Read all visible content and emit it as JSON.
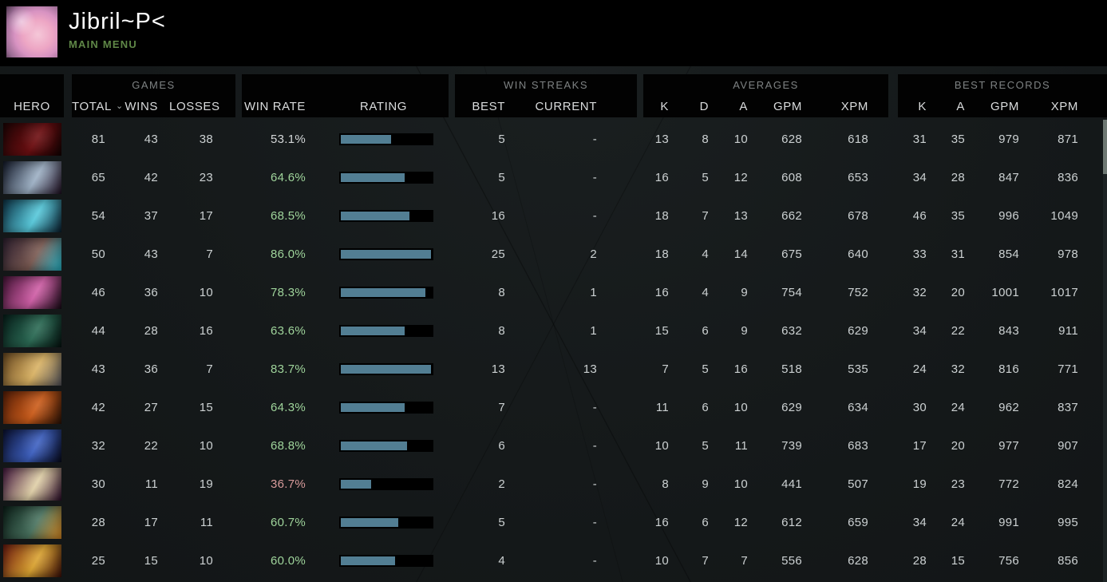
{
  "profile": {
    "name": "Jibril~P<",
    "subtitle": "MAIN MENU"
  },
  "colors": {
    "accent_green": "#9fd49b",
    "accent_red": "#d89b9b",
    "bar_fill": "#527e93",
    "menu_green": "#5f8747"
  },
  "table": {
    "groups": {
      "games": "GAMES",
      "win_streaks": "WIN STREAKS",
      "averages": "AVERAGES",
      "best_records": "BEST RECORDS"
    },
    "columns": {
      "hero": "HERO",
      "total": "TOTAL",
      "wins": "WINS",
      "losses": "LOSSES",
      "win_rate": "WIN RATE",
      "rating": "RATING",
      "best": "BEST",
      "current": "CURRENT",
      "k": "K",
      "d": "D",
      "a": "A",
      "gpm": "GPM",
      "xpm": "XPM",
      "rec_k": "K",
      "rec_a": "A",
      "rec_gpm": "GPM",
      "rec_xpm": "XPM"
    },
    "sort_icon": "⌄",
    "rows": [
      {
        "hero": "shadow-fiend",
        "portrait": [
          "#1c0404",
          "#6e0f12",
          "#120202"
        ],
        "total": "81",
        "wins": "43",
        "losses": "38",
        "win_rate": "53.1%",
        "rating_pct": 55,
        "best_streak": "5",
        "current_streak": "-",
        "avg": {
          "k": "13",
          "d": "8",
          "a": "10",
          "gpm": "628",
          "xpm": "618"
        },
        "best": {
          "k": "31",
          "a": "35",
          "gpm": "979",
          "xpm": "871"
        }
      },
      {
        "hero": "queen-of-pain",
        "portrait": [
          "#151b2b",
          "#9db0c4",
          "#201022"
        ],
        "total": "65",
        "wins": "42",
        "losses": "23",
        "win_rate": "64.6%",
        "rating_pct": 70,
        "best_streak": "5",
        "current_streak": "-",
        "avg": {
          "k": "16",
          "d": "5",
          "a": "12",
          "gpm": "608",
          "xpm": "653"
        },
        "best": {
          "k": "34",
          "a": "28",
          "gpm": "847",
          "xpm": "836"
        }
      },
      {
        "hero": "storm-spirit",
        "portrait": [
          "#0d3346",
          "#57c8da",
          "#0a1e2e"
        ],
        "total": "54",
        "wins": "37",
        "losses": "17",
        "win_rate": "68.5%",
        "rating_pct": 75,
        "best_streak": "16",
        "current_streak": "-",
        "avg": {
          "k": "18",
          "d": "7",
          "a": "13",
          "gpm": "662",
          "xpm": "678"
        },
        "best": {
          "k": "46",
          "a": "35",
          "gpm": "996",
          "xpm": "1049"
        }
      },
      {
        "hero": "tinker",
        "portrait": [
          "#2e2030",
          "#7a5a52",
          "#27b6c9"
        ],
        "total": "50",
        "wins": "43",
        "losses": "7",
        "win_rate": "86.0%",
        "rating_pct": 99,
        "best_streak": "25",
        "current_streak": "2",
        "avg": {
          "k": "18",
          "d": "4",
          "a": "14",
          "gpm": "675",
          "xpm": "640"
        },
        "best": {
          "k": "33",
          "a": "31",
          "gpm": "854",
          "xpm": "978"
        }
      },
      {
        "hero": "templar-assassin",
        "portrait": [
          "#471538",
          "#cf5fa6",
          "#180a16"
        ],
        "total": "46",
        "wins": "36",
        "losses": "10",
        "win_rate": "78.3%",
        "rating_pct": 93,
        "best_streak": "8",
        "current_streak": "1",
        "avg": {
          "k": "16",
          "d": "4",
          "a": "9",
          "gpm": "754",
          "xpm": "752"
        },
        "best": {
          "k": "32",
          "a": "20",
          "gpm": "1001",
          "xpm": "1017"
        }
      },
      {
        "hero": "outworld-destroyer",
        "portrait": [
          "#07201b",
          "#2c6b55",
          "#051310"
        ],
        "total": "44",
        "wins": "28",
        "losses": "16",
        "win_rate": "63.6%",
        "rating_pct": 70,
        "best_streak": "8",
        "current_streak": "1",
        "avg": {
          "k": "15",
          "d": "6",
          "a": "9",
          "gpm": "632",
          "xpm": "629"
        },
        "best": {
          "k": "34",
          "a": "22",
          "gpm": "843",
          "xpm": "911"
        }
      },
      {
        "hero": "omniknight",
        "portrait": [
          "#6b4a22",
          "#d9b264",
          "#57575e"
        ],
        "total": "43",
        "wins": "36",
        "losses": "7",
        "win_rate": "83.7%",
        "rating_pct": 99,
        "best_streak": "13",
        "current_streak": "13",
        "avg": {
          "k": "7",
          "d": "5",
          "a": "16",
          "gpm": "518",
          "xpm": "535"
        },
        "best": {
          "k": "24",
          "a": "32",
          "gpm": "816",
          "xpm": "771"
        }
      },
      {
        "hero": "legion-commander",
        "portrait": [
          "#591f07",
          "#cc5d1b",
          "#2a1206"
        ],
        "total": "42",
        "wins": "27",
        "losses": "15",
        "win_rate": "64.3%",
        "rating_pct": 70,
        "best_streak": "7",
        "current_streak": "-",
        "avg": {
          "k": "11",
          "d": "6",
          "a": "10",
          "gpm": "629",
          "xpm": "634"
        },
        "best": {
          "k": "30",
          "a": "24",
          "gpm": "962",
          "xpm": "837"
        }
      },
      {
        "hero": "luna",
        "portrait": [
          "#0b1233",
          "#3f62c2",
          "#070a1c"
        ],
        "total": "32",
        "wins": "22",
        "losses": "10",
        "win_rate": "68.8%",
        "rating_pct": 73,
        "best_streak": "6",
        "current_streak": "-",
        "avg": {
          "k": "10",
          "d": "5",
          "a": "11",
          "gpm": "739",
          "xpm": "683"
        },
        "best": {
          "k": "17",
          "a": "20",
          "gpm": "977",
          "xpm": "907"
        }
      },
      {
        "hero": "invoker",
        "portrait": [
          "#451840",
          "#e0d0a8",
          "#2c0c2a"
        ],
        "total": "30",
        "wins": "11",
        "losses": "19",
        "win_rate": "36.7%",
        "rating_pct": 33,
        "best_streak": "2",
        "current_streak": "-",
        "avg": {
          "k": "8",
          "d": "9",
          "a": "10",
          "gpm": "441",
          "xpm": "507"
        },
        "best": {
          "k": "19",
          "a": "23",
          "gpm": "772",
          "xpm": "824"
        }
      },
      {
        "hero": "slark",
        "portrait": [
          "#0c2019",
          "#4a7360",
          "#d98a24"
        ],
        "total": "28",
        "wins": "17",
        "losses": "11",
        "win_rate": "60.7%",
        "rating_pct": 63,
        "best_streak": "5",
        "current_streak": "-",
        "avg": {
          "k": "16",
          "d": "6",
          "a": "12",
          "gpm": "612",
          "xpm": "659"
        },
        "best": {
          "k": "34",
          "a": "24",
          "gpm": "991",
          "xpm": "995"
        }
      },
      {
        "hero": "huskar",
        "portrait": [
          "#6d1a10",
          "#d9a231",
          "#3c0e08"
        ],
        "total": "25",
        "wins": "15",
        "losses": "10",
        "win_rate": "60.0%",
        "rating_pct": 60,
        "best_streak": "4",
        "current_streak": "-",
        "avg": {
          "k": "10",
          "d": "7",
          "a": "7",
          "gpm": "556",
          "xpm": "628"
        },
        "best": {
          "k": "28",
          "a": "15",
          "gpm": "756",
          "xpm": "856"
        }
      }
    ]
  }
}
